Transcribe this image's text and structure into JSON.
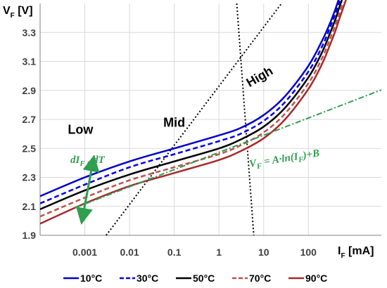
{
  "chart_data": {
    "type": "line",
    "x_scale": "log",
    "xlim": [
      0.0001,
      700
    ],
    "ylim": [
      1.9,
      3.5
    ],
    "x_ticks": [
      {
        "value": 0.001,
        "label": "0.001"
      },
      {
        "value": 0.01,
        "label": "0.01"
      },
      {
        "value": 0.1,
        "label": "0.1"
      },
      {
        "value": 1,
        "label": "1"
      },
      {
        "value": 10,
        "label": "10"
      },
      {
        "value": 100,
        "label": "100"
      }
    ],
    "y_ticks": [
      {
        "value": 1.9,
        "label": "1.9"
      },
      {
        "value": 2.1,
        "label": "2.1"
      },
      {
        "value": 2.3,
        "label": "2.3"
      },
      {
        "value": 2.5,
        "label": "2.5"
      },
      {
        "value": 2.7,
        "label": "2.7"
      },
      {
        "value": 2.9,
        "label": "2.9"
      },
      {
        "value": 3.1,
        "label": "3.1"
      },
      {
        "value": 3.3,
        "label": "3.3"
      }
    ],
    "xlabel": {
      "main": "I",
      "sub": "F",
      "unit": " [mA]"
    },
    "ylabel": {
      "main": "V",
      "sub": "F",
      "unit": " [V]"
    },
    "grid": true,
    "legend_position": "bottom",
    "series": [
      {
        "name": "10°C",
        "color": "#0000cc",
        "dash": "solid",
        "x": [
          0.0001,
          0.001,
          0.01,
          0.1,
          1,
          3,
          10,
          30,
          100,
          200,
          300,
          400,
          500
        ],
        "y": [
          2.17,
          2.3,
          2.41,
          2.5,
          2.59,
          2.64,
          2.73,
          2.86,
          3.07,
          3.24,
          3.36,
          3.46,
          3.55
        ]
      },
      {
        "name": "30°C",
        "color": "#0000ee",
        "dash": "dashed",
        "x": [
          0.0001,
          0.001,
          0.01,
          0.1,
          1,
          3,
          10,
          30,
          100,
          200,
          300,
          400,
          500
        ],
        "y": [
          2.12,
          2.25,
          2.37,
          2.46,
          2.55,
          2.6,
          2.69,
          2.82,
          3.03,
          3.2,
          3.33,
          3.43,
          3.52
        ]
      },
      {
        "name": "50°C",
        "color": "#000000",
        "dash": "solid",
        "x": [
          0.0001,
          0.001,
          0.01,
          0.1,
          1,
          3,
          10,
          30,
          100,
          200,
          300,
          400,
          500,
          600
        ],
        "y": [
          2.08,
          2.21,
          2.32,
          2.41,
          2.5,
          2.56,
          2.65,
          2.78,
          2.99,
          3.16,
          3.29,
          3.39,
          3.48,
          3.55
        ]
      },
      {
        "name": "70°C",
        "color": "#c0504d",
        "dash": "dashed",
        "x": [
          0.0001,
          0.001,
          0.01,
          0.1,
          1,
          3,
          10,
          30,
          100,
          200,
          300,
          400,
          500,
          600
        ],
        "y": [
          2.03,
          2.16,
          2.28,
          2.37,
          2.46,
          2.52,
          2.61,
          2.74,
          2.95,
          3.12,
          3.25,
          3.35,
          3.44,
          3.51
        ]
      },
      {
        "name": "90°C",
        "color": "#a52a2a",
        "dash": "solid",
        "x": [
          0.0001,
          0.001,
          0.01,
          0.1,
          1,
          3,
          10,
          30,
          100,
          200,
          300,
          400,
          500,
          600,
          700
        ],
        "y": [
          1.98,
          2.12,
          2.24,
          2.33,
          2.42,
          2.48,
          2.57,
          2.7,
          2.91,
          3.08,
          3.21,
          3.31,
          3.4,
          3.47,
          3.53
        ]
      }
    ],
    "fit_line": {
      "color": "#2e9e4f",
      "x": [
        0.0006,
        700
      ],
      "y": [
        2.09,
        2.86
      ],
      "label": {
        "lhs_main": "V",
        "lhs_sub": "F",
        "mid": " = A·ln(I",
        "mid_sub": "F",
        "rhs": ")+B"
      }
    },
    "region_lines": [
      {
        "x": [
          0.003,
          25
        ],
        "y": [
          1.9,
          3.5
        ]
      },
      {
        "x": [
          2.5,
          6
        ],
        "y": [
          3.5,
          1.9
        ]
      }
    ],
    "region_labels": [
      {
        "text": "Low",
        "x": 0.0008,
        "y": 2.6
      },
      {
        "text": "Mid",
        "x": 0.1,
        "y": 2.65
      },
      {
        "text": "High",
        "x": 9,
        "y": 2.97
      }
    ],
    "arrow": {
      "color": "#2e9e4f",
      "from": {
        "x": 0.0009,
        "y": 2.03
      },
      "to": {
        "x": 0.0015,
        "y": 2.4
      },
      "label": {
        "a": "dI",
        "a_sub": "F",
        "sep": " , ",
        "b": "dT"
      }
    }
  }
}
